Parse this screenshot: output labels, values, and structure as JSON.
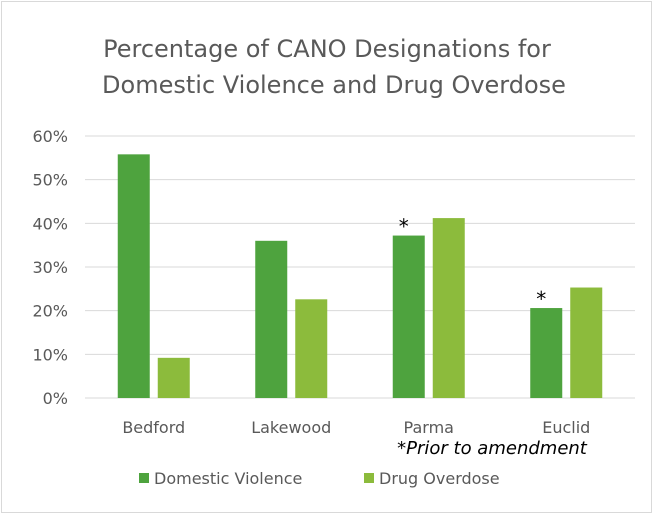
{
  "chart_data": {
    "type": "bar",
    "title_lines": [
      "Percentage of CANO Designations for",
      "Domestic Violence and Drug Overdose"
    ],
    "categories": [
      "Bedford",
      "Lakewood",
      "Parma",
      "Euclid"
    ],
    "series": [
      {
        "name": "Domestic Violence",
        "values": [
          55.8,
          36.0,
          37.2,
          20.6
        ],
        "color": "#4ea33e"
      },
      {
        "name": "Drug Overdose",
        "values": [
          9.2,
          22.6,
          41.2,
          25.3
        ],
        "color": "#8cbb3c"
      }
    ],
    "y_ticks": [
      "0%",
      "10%",
      "20%",
      "30%",
      "40%",
      "50%",
      "60%"
    ],
    "ylim": [
      0,
      60
    ],
    "grid": true,
    "legend_position": "bottom",
    "markers": [
      {
        "category": "Parma",
        "series": "Domestic Violence",
        "symbol": "*"
      },
      {
        "category": "Euclid",
        "series": "Domestic Violence",
        "symbol": "*"
      }
    ],
    "annotation": "*Prior to amendment"
  }
}
